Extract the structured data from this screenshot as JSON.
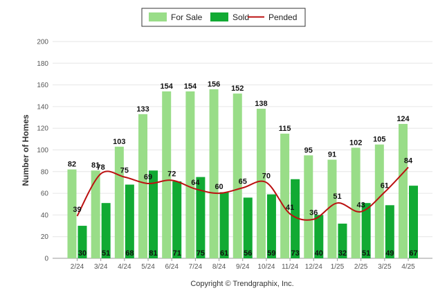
{
  "chart_data": {
    "type": "bar",
    "categories": [
      "2/24",
      "3/24",
      "4/24",
      "5/24",
      "6/24",
      "7/24",
      "8/24",
      "9/24",
      "10/24",
      "11/24",
      "12/24",
      "1/25",
      "2/25",
      "3/25",
      "4/25"
    ],
    "series": [
      {
        "name": "For Sale",
        "kind": "bar",
        "color": "#99DD88",
        "values": [
          82,
          81,
          103,
          133,
          154,
          154,
          156,
          152,
          138,
          115,
          95,
          91,
          102,
          105,
          124
        ]
      },
      {
        "name": "Sold",
        "kind": "bar",
        "color": "#11AA33",
        "values": [
          30,
          51,
          68,
          81,
          71,
          75,
          61,
          56,
          59,
          73,
          40,
          32,
          51,
          49,
          67
        ]
      },
      {
        "name": "Pended",
        "kind": "line",
        "color": "#BB1111",
        "values": [
          39,
          78,
          75,
          69,
          72,
          64,
          60,
          65,
          70,
          41,
          36,
          51,
          43,
          61,
          84
        ]
      }
    ],
    "ylabel": "Number of Homes",
    "xlabel": "",
    "ylim": [
      0,
      200
    ],
    "yticks": [
      0,
      20,
      40,
      60,
      80,
      100,
      120,
      140,
      160,
      180,
      200
    ],
    "grid": true,
    "legend_position": "top-center"
  },
  "footer": {
    "copyright": "Copyright © Trendgraphix, Inc."
  }
}
